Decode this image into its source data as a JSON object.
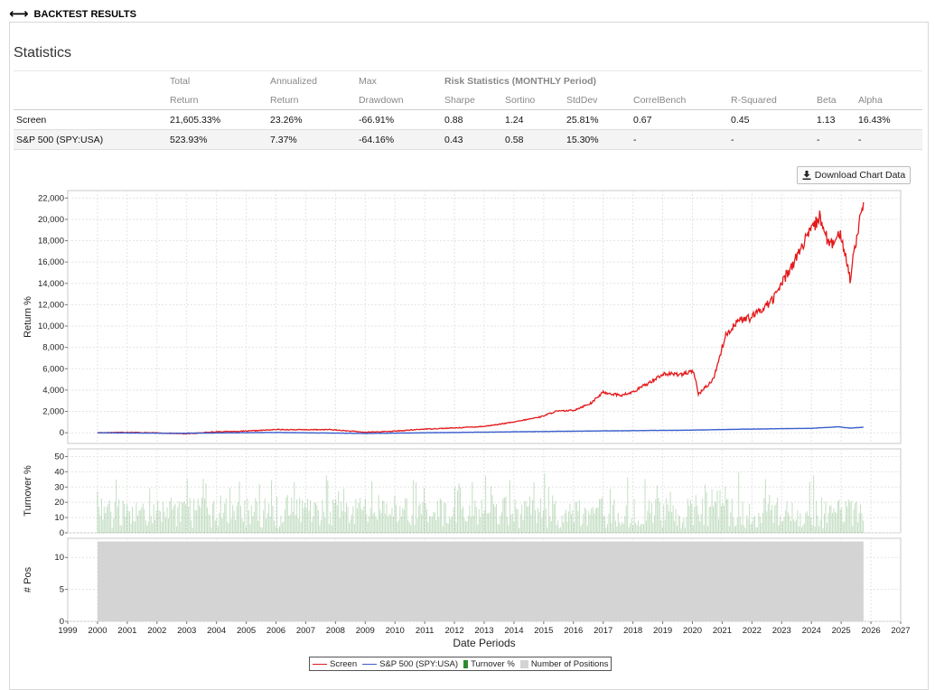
{
  "header": {
    "title": "BACKTEST RESULTS",
    "icon": "left-right-arrow-icon"
  },
  "statistics": {
    "title": "Statistics",
    "risk_label": "Risk Statistics (MONTHLY Period)",
    "headers_top": [
      "Total",
      "Annualized",
      "Max"
    ],
    "headers": [
      "Return",
      "Return",
      "Drawdown",
      "Sharpe",
      "Sortino",
      "StdDev",
      "CorrelBench",
      "R-Squared",
      "Beta",
      "Alpha"
    ],
    "rows": [
      {
        "name": "Screen",
        "values": [
          "21,605.33%",
          "23.26%",
          "-66.91%",
          "0.88",
          "1.24",
          "25.81%",
          "0.67",
          "0.45",
          "1.13",
          "16.43%"
        ]
      },
      {
        "name": "S&P 500 (SPY:USA)",
        "values": [
          "523.93%",
          "7.37%",
          "-64.16%",
          "0.43",
          "0.58",
          "15.30%",
          "-",
          "-",
          "-",
          "-"
        ]
      }
    ]
  },
  "download_button": {
    "label": "Download Chart Data",
    "icon": "download-icon"
  },
  "chart_data": {
    "type": "line",
    "xlabel": "Date Periods",
    "x_ticks": [
      "1999",
      "2000",
      "2001",
      "2002",
      "2003",
      "2004",
      "2005",
      "2006",
      "2007",
      "2008",
      "2009",
      "2010",
      "2011",
      "2012",
      "2013",
      "2014",
      "2015",
      "2016",
      "2017",
      "2018",
      "2019",
      "2020",
      "2021",
      "2022",
      "2023",
      "2024",
      "2025",
      "2026",
      "2027"
    ],
    "x_range": [
      1999,
      2027
    ],
    "grid": true,
    "legend_placement": "bottom-center",
    "panels": [
      {
        "ylabel": "Return %",
        "ylim": [
          -1000,
          22700
        ],
        "yticks": [
          "0",
          "2,000",
          "4,000",
          "6,000",
          "8,000",
          "10,000",
          "12,000",
          "14,000",
          "16,000",
          "18,000",
          "20,000",
          "22,000"
        ],
        "series": [
          {
            "name": "Screen",
            "color": "#e41a1c",
            "points": [
              [
                2000.0,
                0
              ],
              [
                2001.0,
                50
              ],
              [
                2002.5,
                -50
              ],
              [
                2003.0,
                -100
              ],
              [
                2004.0,
                100
              ],
              [
                2005.0,
                150
              ],
              [
                2006.0,
                300
              ],
              [
                2007.0,
                280
              ],
              [
                2007.8,
                300
              ],
              [
                2009.0,
                50
              ],
              [
                2010.0,
                150
              ],
              [
                2011.0,
                350
              ],
              [
                2012.0,
                450
              ],
              [
                2013.0,
                600
              ],
              [
                2014.0,
                1000
              ],
              [
                2014.9,
                1500
              ],
              [
                2015.4,
                2000
              ],
              [
                2016.0,
                2100
              ],
              [
                2016.6,
                2800
              ],
              [
                2017.0,
                3800
              ],
              [
                2017.6,
                3500
              ],
              [
                2018.0,
                3800
              ],
              [
                2018.6,
                4800
              ],
              [
                2019.0,
                5500
              ],
              [
                2019.6,
                5500
              ],
              [
                2020.05,
                5700
              ],
              [
                2020.2,
                3600
              ],
              [
                2020.7,
                5000
              ],
              [
                2021.1,
                9000
              ],
              [
                2021.5,
                10500
              ],
              [
                2022.0,
                10800
              ],
              [
                2022.7,
                12500
              ],
              [
                2023.0,
                14000
              ],
              [
                2023.5,
                16500
              ],
              [
                2023.8,
                18000
              ],
              [
                2024.3,
                20300
              ],
              [
                2024.6,
                17500
              ],
              [
                2025.0,
                18500
              ],
              [
                2025.3,
                14500
              ],
              [
                2025.55,
                19000
              ],
              [
                2025.75,
                21600
              ]
            ]
          },
          {
            "name": "S&P 500 (SPY:USA)",
            "color": "#3a5fcd",
            "points": [
              [
                2000.0,
                0
              ],
              [
                2002.5,
                -50
              ],
              [
                2006.0,
                30
              ],
              [
                2009.0,
                -60
              ],
              [
                2012.0,
                30
              ],
              [
                2015.0,
                120
              ],
              [
                2018.0,
                200
              ],
              [
                2020.0,
                250
              ],
              [
                2021.5,
                330
              ],
              [
                2024.0,
                420
              ],
              [
                2024.9,
                560
              ],
              [
                2025.3,
                440
              ],
              [
                2025.75,
                520
              ]
            ]
          }
        ]
      },
      {
        "ylabel": "Turnover %",
        "ylim": [
          0,
          55
        ],
        "yticks": [
          "0",
          "10",
          "20",
          "30",
          "40",
          "50"
        ],
        "series": [
          {
            "name": "Turnover %",
            "color": "#2e8b2e",
            "typical_range": [
              3,
              40
            ]
          }
        ]
      },
      {
        "ylabel": "# Pos",
        "ylim": [
          0,
          13
        ],
        "yticks": [
          "0",
          "5",
          "10"
        ],
        "series": [
          {
            "name": "Number of Positions",
            "color": "#d4d4d4",
            "value": 12.5,
            "x_range": [
              2000.0,
              2025.75
            ]
          }
        ]
      }
    ]
  },
  "legend": {
    "items": [
      {
        "label": "Screen",
        "color": "#e41a1c"
      },
      {
        "label": "S&P 500 (SPY:USA)",
        "color": "#3a5fcd"
      },
      {
        "label": "Turnover %",
        "color": "#2e8b2e"
      },
      {
        "label": "Number of Positions",
        "color": "#d4d4d4"
      }
    ]
  }
}
